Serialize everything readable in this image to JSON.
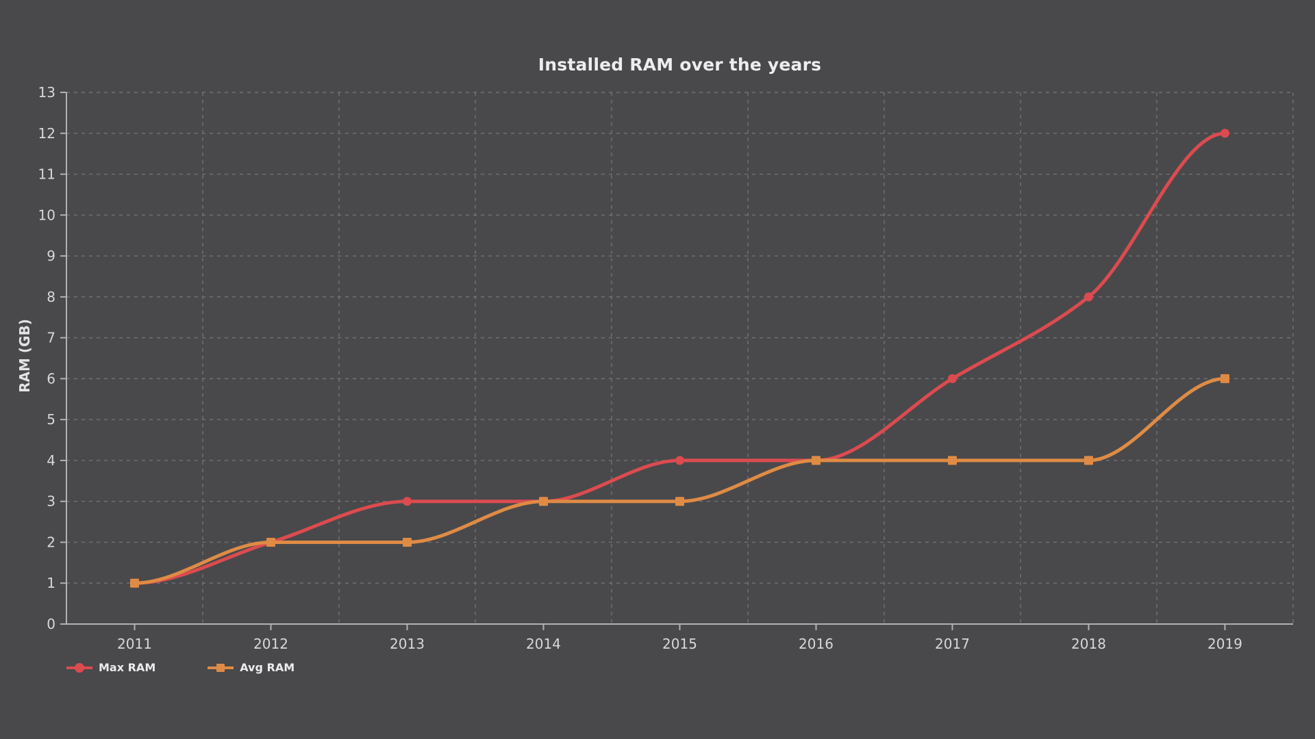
{
  "title": "Installed RAM over the years",
  "colors": {
    "background": "#49494b",
    "gridline": "#7d7d81",
    "axis_line": "#b2b2b6",
    "tick_label": "#d8d8da",
    "title_text": "#ededef",
    "max_ram": "#dc4b4f",
    "avg_ram": "#df8b45"
  },
  "legend": {
    "items": [
      {
        "label": "Max RAM",
        "marker": "circle",
        "color": "#dc4b4f"
      },
      {
        "label": "Avg RAM",
        "marker": "square",
        "color": "#df8b45"
      }
    ]
  },
  "chart_data": {
    "type": "line",
    "title": "Installed RAM over the years",
    "xlabel": "",
    "ylabel": "RAM (GB)",
    "categories": [
      "2011",
      "2012",
      "2013",
      "2014",
      "2015",
      "2016",
      "2017",
      "2018",
      "2019"
    ],
    "series": [
      {
        "name": "Max RAM",
        "color": "#dc4b4f",
        "marker": "circle",
        "values": [
          1,
          2,
          3,
          3,
          4,
          4,
          6,
          8,
          12
        ]
      },
      {
        "name": "Avg RAM",
        "color": "#df8b45",
        "marker": "square",
        "values": [
          1,
          2,
          2,
          3,
          3,
          4,
          4,
          4,
          6
        ]
      }
    ],
    "ylim": [
      0,
      13
    ],
    "y_ticks": [
      0,
      1,
      2,
      3,
      4,
      5,
      6,
      7,
      8,
      9,
      10,
      11,
      12,
      13
    ],
    "grid": true,
    "grid_style": "dashed",
    "smooth": true,
    "legend_position": "bottom-left",
    "background": "dark"
  }
}
